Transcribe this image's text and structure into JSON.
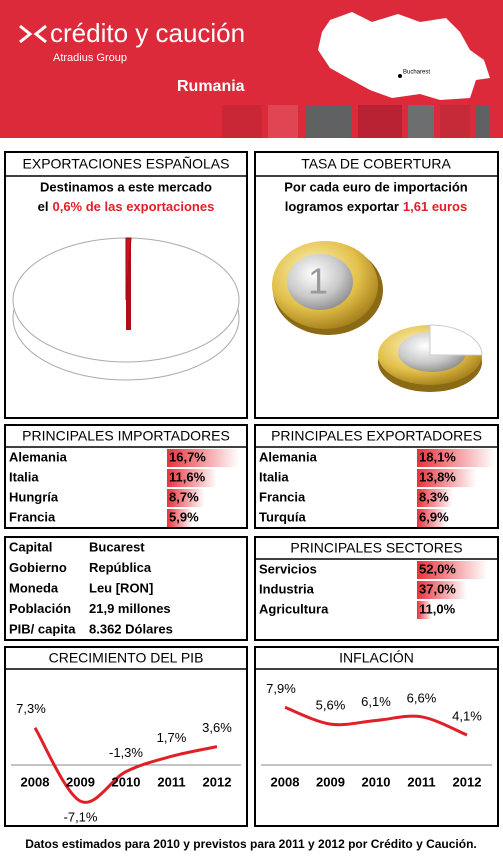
{
  "header": {
    "brand": "crédito y caución",
    "group": "Atradius Group",
    "country": "Rumania",
    "map_label": "Bucharest"
  },
  "exports": {
    "title": "EXPORTACIONES ESPAÑOLAS",
    "line1": "Destinamos a este mercado",
    "line2_prefix": "el",
    "line2_highlight": "0,6% de las exportaciones"
  },
  "coverage": {
    "title": "TASA DE COBERTURA",
    "line1": "Por cada euro de importación",
    "line2_prefix": "logramos exportar",
    "line2_highlight": "1,61 euros"
  },
  "profile": {
    "rows": [
      {
        "label": "Capital",
        "value": "Bucarest"
      },
      {
        "label": "Gobierno",
        "value": "República"
      },
      {
        "label": "Moneda",
        "value": "Leu [RON]"
      },
      {
        "label": "Población",
        "value": "21,9 millones"
      },
      {
        "label": "PIB/ capita",
        "value": "8.362 Dólares"
      }
    ]
  },
  "chart_data": [
    {
      "type": "bar",
      "title": "PRINCIPALES IMPORTADORES",
      "categories": [
        "Alemania",
        "Italia",
        "Hungría",
        "Francia"
      ],
      "values": [
        16.7,
        11.6,
        8.7,
        5.9
      ],
      "value_labels": [
        "16,7%",
        "11,6%",
        "8,7%",
        "5,9%"
      ],
      "color": "#e8323c"
    },
    {
      "type": "bar",
      "title": "PRINCIPALES EXPORTADORES",
      "categories": [
        "Alemania",
        "Italia",
        "Francia",
        "Turquía"
      ],
      "values": [
        18.1,
        13.8,
        8.3,
        6.9
      ],
      "value_labels": [
        "18,1%",
        "13,8%",
        "8,3%",
        "6,9%"
      ],
      "color": "#e8323c"
    },
    {
      "type": "bar",
      "title": "PRINCIPALES SECTORES",
      "categories": [
        "Servicios",
        "Industria",
        "Agricultura"
      ],
      "values": [
        52.0,
        37.0,
        11.0
      ],
      "value_labels": [
        "52,0%",
        "37,0%",
        "11,0%"
      ],
      "color": "#e8323c"
    },
    {
      "type": "line",
      "title": "CRECIMIENTO DEL PIB",
      "categories": [
        "2008",
        "2009",
        "2010",
        "2011",
        "2012"
      ],
      "values": [
        7.3,
        -7.1,
        -1.3,
        1.7,
        3.6
      ],
      "value_labels": [
        "7,3%",
        "-7,1%",
        "-1,3%",
        "1,7%",
        "3,6%"
      ],
      "color": "#e01f26"
    },
    {
      "type": "line",
      "title": "INFLACIÓN",
      "categories": [
        "2008",
        "2009",
        "2010",
        "2011",
        "2012"
      ],
      "values": [
        7.9,
        5.6,
        6.1,
        6.6,
        4.1
      ],
      "value_labels": [
        "7,9%",
        "5,6%",
        "6,1%",
        "6,6%",
        "4,1%"
      ],
      "color": "#e01f26"
    }
  ],
  "footer": "Datos estimados para 2010 y previstos para 2011  y 2012 por Crédito y Caución."
}
